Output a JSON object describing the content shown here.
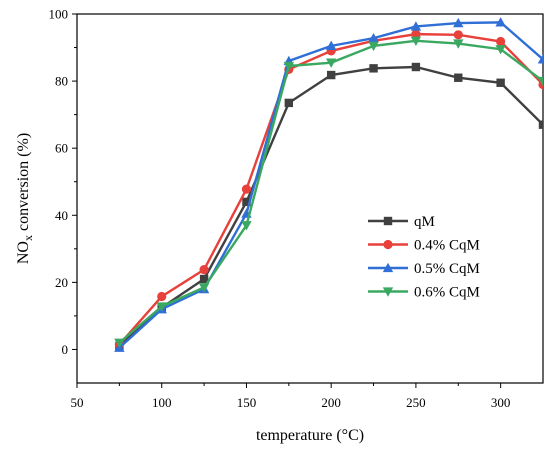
{
  "chart_data": {
    "type": "line",
    "xlabel": "temperature (°C)",
    "ylabel_main": "NO",
    "ylabel_sub": "x",
    "ylabel_rest": " conversion (%)",
    "xlim": [
      50,
      325
    ],
    "ylim": [
      -10,
      100
    ],
    "x_ticks": [
      50,
      100,
      150,
      200,
      250,
      300
    ],
    "y_ticks": [
      0,
      20,
      40,
      60,
      80,
      100
    ],
    "grid": false,
    "legend_position": "right",
    "x": [
      75,
      100,
      125,
      150,
      175,
      200,
      225,
      250,
      275,
      300,
      325
    ],
    "series": [
      {
        "name": "qM",
        "color": "#404040",
        "marker": "square",
        "values": [
          1.0,
          12.5,
          21.0,
          44.0,
          73.5,
          81.8,
          83.8,
          84.2,
          81.0,
          79.5,
          67.0
        ]
      },
      {
        "name": "0.4% CqM",
        "color": "#e8403a",
        "marker": "circle",
        "values": [
          1.5,
          15.8,
          23.8,
          47.8,
          83.5,
          89.0,
          92.0,
          94.0,
          93.8,
          91.8,
          79.0
        ]
      },
      {
        "name": "0.5% CqM",
        "color": "#2f6fd6",
        "marker": "triangle-up",
        "values": [
          0.5,
          12.0,
          18.0,
          40.5,
          86.0,
          90.5,
          92.8,
          96.3,
          97.3,
          97.5,
          86.5
        ]
      },
      {
        "name": "0.6% CqM",
        "color": "#3aa861",
        "marker": "triangle-down",
        "values": [
          2.0,
          12.8,
          18.5,
          37.0,
          84.5,
          85.5,
          90.5,
          92.0,
          91.2,
          89.5,
          80.0
        ]
      }
    ]
  }
}
